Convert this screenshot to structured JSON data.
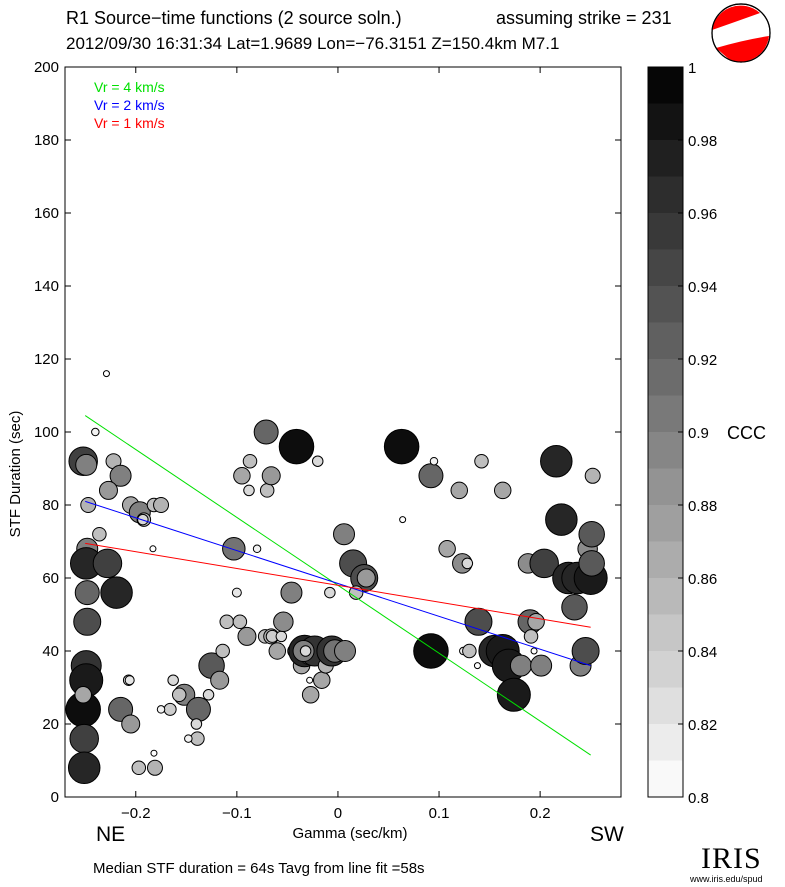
{
  "header": {
    "title": "R1 Source−time functions (2 source soln.)",
    "strike": "assuming strike = 231",
    "event": "2012/09/30 16:31:34  Lat=1.9689 Lon=−76.3151  Z=150.4km  M7.1"
  },
  "footer": {
    "summary": "Median STF duration = 64s    Tavg from line fit =58s",
    "logo_text": "IRIS",
    "logo_url": "www.iris.edu/spud"
  },
  "chart_data": {
    "type": "scatter",
    "xlabel": "Gamma (sec/km)",
    "ylabel": "STF Duration (sec)",
    "xlim": [
      -0.27,
      0.28
    ],
    "ylim": [
      0,
      200
    ],
    "xticks": [
      -0.2,
      -0.1,
      0,
      0.1,
      0.2
    ],
    "xtick_labels": [
      "−0.2",
      "−0.1",
      "0",
      "0.1",
      "0.2"
    ],
    "yticks": [
      0,
      20,
      40,
      60,
      80,
      100,
      120,
      140,
      160,
      180,
      200
    ],
    "corner_labels": {
      "left": "NE",
      "right": "SW"
    },
    "legend": [
      {
        "label": "Vr = 4 km/s",
        "color": "#00e000"
      },
      {
        "label": "Vr = 2 km/s",
        "color": "#0000ff"
      },
      {
        "label": "Vr = 1 km/s",
        "color": "#ff0000"
      }
    ],
    "fit_lines": [
      {
        "name": "Vr = 4 km/s",
        "x": [
          -0.25,
          0.25
        ],
        "y": [
          104.5,
          11.5
        ]
      },
      {
        "name": "Vr = 2 km/s",
        "x": [
          -0.25,
          0.25
        ],
        "y": [
          81,
          36
        ]
      },
      {
        "name": "Vr = 1 km/s",
        "x": [
          -0.25,
          0.25
        ],
        "y": [
          69.5,
          46.5
        ]
      }
    ],
    "colorbar": {
      "label": "CCC",
      "min": 0.8,
      "max": 1.0,
      "ticks": [
        0.8,
        0.82,
        0.84,
        0.86,
        0.88,
        0.9,
        0.92,
        0.94,
        0.96,
        0.98,
        1
      ],
      "tick_labels": [
        "0.8",
        "0.82",
        "0.84",
        "0.86",
        "0.88",
        "0.9",
        "0.92",
        "0.94",
        "0.96",
        "0.98",
        "1"
      ]
    },
    "points": [
      {
        "x": -0.229,
        "y": 116,
        "c": 0.8
      },
      {
        "x": -0.24,
        "y": 100,
        "c": 0.81
      },
      {
        "x": -0.252,
        "y": 92,
        "c": 0.95
      },
      {
        "x": -0.249,
        "y": 91,
        "c": 0.9
      },
      {
        "x": -0.222,
        "y": 92,
        "c": 0.86
      },
      {
        "x": -0.215,
        "y": 88,
        "c": 0.9
      },
      {
        "x": -0.227,
        "y": 84,
        "c": 0.88
      },
      {
        "x": -0.247,
        "y": 80,
        "c": 0.86
      },
      {
        "x": -0.205,
        "y": 80,
        "c": 0.87
      },
      {
        "x": -0.196,
        "y": 78,
        "c": 0.9
      },
      {
        "x": -0.182,
        "y": 80,
        "c": 0.85
      },
      {
        "x": -0.175,
        "y": 80,
        "c": 0.86
      },
      {
        "x": -0.192,
        "y": 76,
        "c": 0.85
      },
      {
        "x": -0.193,
        "y": 76,
        "c": 0.83
      },
      {
        "x": -0.236,
        "y": 72,
        "c": 0.85
      },
      {
        "x": -0.248,
        "y": 68,
        "c": 0.9
      },
      {
        "x": -0.183,
        "y": 68,
        "c": 0.8
      },
      {
        "x": -0.249,
        "y": 64,
        "c": 0.97
      },
      {
        "x": -0.228,
        "y": 64,
        "c": 0.95
      },
      {
        "x": -0.248,
        "y": 56,
        "c": 0.92
      },
      {
        "x": -0.219,
        "y": 56,
        "c": 0.97
      },
      {
        "x": -0.248,
        "y": 48,
        "c": 0.94
      },
      {
        "x": -0.249,
        "y": 36,
        "c": 0.96
      },
      {
        "x": -0.249,
        "y": 32,
        "c": 0.98
      },
      {
        "x": -0.252,
        "y": 24,
        "c": 0.99
      },
      {
        "x": -0.252,
        "y": 28,
        "c": 0.87
      },
      {
        "x": -0.251,
        "y": 16,
        "c": 0.95
      },
      {
        "x": -0.251,
        "y": 8,
        "c": 0.97
      },
      {
        "x": -0.207,
        "y": 32,
        "c": 0.83
      },
      {
        "x": -0.206,
        "y": 32,
        "c": 0.82
      },
      {
        "x": -0.215,
        "y": 24,
        "c": 0.92
      },
      {
        "x": -0.205,
        "y": 20,
        "c": 0.88
      },
      {
        "x": -0.197,
        "y": 8,
        "c": 0.85
      },
      {
        "x": -0.181,
        "y": 8,
        "c": 0.86
      },
      {
        "x": -0.182,
        "y": 12,
        "c": 0.8
      },
      {
        "x": -0.163,
        "y": 32,
        "c": 0.83
      },
      {
        "x": -0.166,
        "y": 24,
        "c": 0.84
      },
      {
        "x": -0.175,
        "y": 24,
        "c": 0.81
      },
      {
        "x": -0.152,
        "y": 28,
        "c": 0.9
      },
      {
        "x": -0.157,
        "y": 28,
        "c": 0.85
      },
      {
        "x": -0.138,
        "y": 24,
        "c": 0.92
      },
      {
        "x": -0.14,
        "y": 20,
        "c": 0.83
      },
      {
        "x": -0.139,
        "y": 16,
        "c": 0.85
      },
      {
        "x": -0.148,
        "y": 16,
        "c": 0.81
      },
      {
        "x": -0.128,
        "y": 28,
        "c": 0.83
      },
      {
        "x": -0.125,
        "y": 36,
        "c": 0.93
      },
      {
        "x": -0.117,
        "y": 32,
        "c": 0.88
      },
      {
        "x": -0.114,
        "y": 40,
        "c": 0.85
      },
      {
        "x": -0.11,
        "y": 48,
        "c": 0.85
      },
      {
        "x": -0.097,
        "y": 48,
        "c": 0.85
      },
      {
        "x": -0.1,
        "y": 56,
        "c": 0.82
      },
      {
        "x": -0.103,
        "y": 68,
        "c": 0.91
      },
      {
        "x": -0.08,
        "y": 68,
        "c": 0.81
      },
      {
        "x": -0.09,
        "y": 44,
        "c": 0.88
      },
      {
        "x": -0.072,
        "y": 44,
        "c": 0.85
      },
      {
        "x": -0.066,
        "y": 44,
        "c": 0.86
      },
      {
        "x": -0.065,
        "y": 44,
        "c": 0.84
      },
      {
        "x": -0.06,
        "y": 40,
        "c": 0.87
      },
      {
        "x": -0.056,
        "y": 44,
        "c": 0.83
      },
      {
        "x": -0.054,
        "y": 48,
        "c": 0.89
      },
      {
        "x": -0.046,
        "y": 56,
        "c": 0.9
      },
      {
        "x": -0.043,
        "y": 40,
        "c": 0.85
      },
      {
        "x": -0.036,
        "y": 36,
        "c": 0.87
      },
      {
        "x": -0.033,
        "y": 40,
        "c": 0.97
      },
      {
        "x": -0.031,
        "y": 28,
        "c": 0.81
      },
      {
        "x": -0.03,
        "y": 38,
        "c": 0.84
      },
      {
        "x": -0.028,
        "y": 32,
        "c": 0.8
      },
      {
        "x": -0.027,
        "y": 28,
        "c": 0.87
      },
      {
        "x": -0.023,
        "y": 40,
        "c": 0.96
      },
      {
        "x": -0.016,
        "y": 32,
        "c": 0.87
      },
      {
        "x": -0.012,
        "y": 36,
        "c": 0.86
      },
      {
        "x": -0.008,
        "y": 40,
        "c": 0.93
      },
      {
        "x": -0.006,
        "y": 40,
        "c": 0.96
      },
      {
        "x": -0.003,
        "y": 40,
        "c": 0.91
      },
      {
        "x": 0.004,
        "y": 40,
        "c": 0.8
      },
      {
        "x": 0.007,
        "y": 40,
        "c": 0.9
      },
      {
        "x": -0.034,
        "y": 40,
        "c": 0.9
      },
      {
        "x": -0.032,
        "y": 40,
        "c": 0.83
      },
      {
        "x": -0.095,
        "y": 88,
        "c": 0.87
      },
      {
        "x": -0.087,
        "y": 92,
        "c": 0.85
      },
      {
        "x": -0.088,
        "y": 84,
        "c": 0.83
      },
      {
        "x": -0.071,
        "y": 100,
        "c": 0.92
      },
      {
        "x": -0.07,
        "y": 84,
        "c": 0.85
      },
      {
        "x": -0.066,
        "y": 88,
        "c": 0.88
      },
      {
        "x": -0.041,
        "y": 96,
        "c": 0.99
      },
      {
        "x": -0.02,
        "y": 92,
        "c": 0.83
      },
      {
        "x": -0.008,
        "y": 56,
        "c": 0.83
      },
      {
        "x": 0.006,
        "y": 72,
        "c": 0.9
      },
      {
        "x": 0.015,
        "y": 64,
        "c": 0.94
      },
      {
        "x": 0.026,
        "y": 60,
        "c": 0.94
      },
      {
        "x": 0.028,
        "y": 60,
        "c": 0.88
      },
      {
        "x": 0.018,
        "y": 56,
        "c": 0.85
      },
      {
        "x": 0.063,
        "y": 96,
        "c": 0.99
      },
      {
        "x": 0.064,
        "y": 76,
        "c": 0.8
      },
      {
        "x": 0.092,
        "y": 88,
        "c": 0.92
      },
      {
        "x": 0.095,
        "y": 92,
        "c": 0.81
      },
      {
        "x": 0.108,
        "y": 68,
        "c": 0.87
      },
      {
        "x": 0.12,
        "y": 84,
        "c": 0.87
      },
      {
        "x": 0.123,
        "y": 64,
        "c": 0.89
      },
      {
        "x": 0.128,
        "y": 64,
        "c": 0.83
      },
      {
        "x": 0.142,
        "y": 92,
        "c": 0.85
      },
      {
        "x": 0.163,
        "y": 84,
        "c": 0.87
      },
      {
        "x": 0.092,
        "y": 40,
        "c": 0.99
      },
      {
        "x": 0.124,
        "y": 40,
        "c": 0.81
      },
      {
        "x": 0.13,
        "y": 40,
        "c": 0.85
      },
      {
        "x": 0.139,
        "y": 48,
        "c": 0.94
      },
      {
        "x": 0.138,
        "y": 36,
        "c": 0.8
      },
      {
        "x": 0.155,
        "y": 40,
        "c": 0.97
      },
      {
        "x": 0.163,
        "y": 40,
        "c": 0.98
      },
      {
        "x": 0.169,
        "y": 36,
        "c": 0.98
      },
      {
        "x": 0.174,
        "y": 28,
        "c": 0.98
      },
      {
        "x": 0.181,
        "y": 36,
        "c": 0.9
      },
      {
        "x": 0.188,
        "y": 64,
        "c": 0.89
      },
      {
        "x": 0.19,
        "y": 48,
        "c": 0.92
      },
      {
        "x": 0.196,
        "y": 48,
        "c": 0.87
      },
      {
        "x": 0.191,
        "y": 44,
        "c": 0.85
      },
      {
        "x": 0.194,
        "y": 40,
        "c": 0.8
      },
      {
        "x": 0.201,
        "y": 36,
        "c": 0.9
      },
      {
        "x": 0.204,
        "y": 64,
        "c": 0.95
      },
      {
        "x": 0.216,
        "y": 92,
        "c": 0.97
      },
      {
        "x": 0.221,
        "y": 76,
        "c": 0.97
      },
      {
        "x": 0.228,
        "y": 60,
        "c": 0.97
      },
      {
        "x": 0.234,
        "y": 52,
        "c": 0.93
      },
      {
        "x": 0.237,
        "y": 60,
        "c": 0.97
      },
      {
        "x": 0.24,
        "y": 36,
        "c": 0.9
      },
      {
        "x": 0.245,
        "y": 40,
        "c": 0.94
      },
      {
        "x": 0.247,
        "y": 68,
        "c": 0.89
      },
      {
        "x": 0.25,
        "y": 60,
        "c": 0.98
      },
      {
        "x": 0.251,
        "y": 72,
        "c": 0.93
      },
      {
        "x": 0.251,
        "y": 64,
        "c": 0.93
      },
      {
        "x": 0.252,
        "y": 88,
        "c": 0.86
      }
    ]
  }
}
